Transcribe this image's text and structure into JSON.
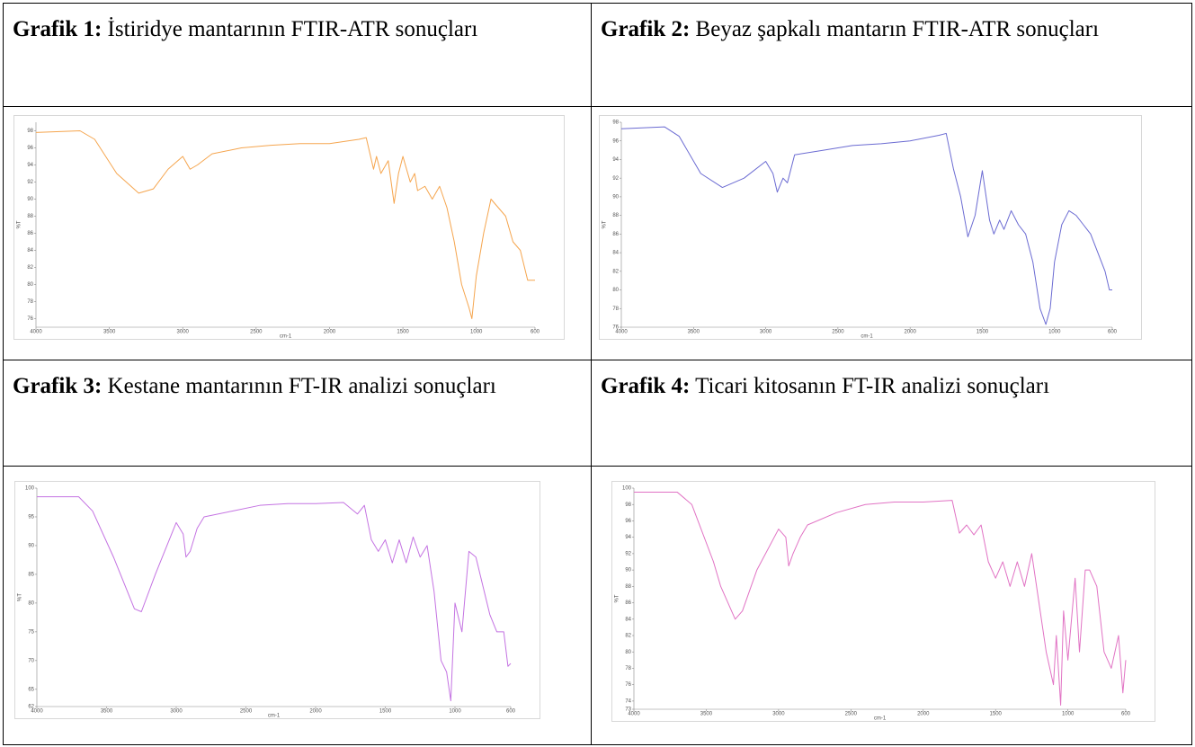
{
  "table": {
    "rows": [
      [
        {
          "label": "Grafik 1:",
          "text": "İstiridye mantarının FTIR-ATR sonuçları"
        },
        {
          "label": "Grafik 2:",
          "text": "Beyaz şapkalı mantarın FTIR-ATR sonuçları"
        }
      ],
      [
        {
          "label": "Grafik 3:",
          "text": "Kestane mantarının FT-IR analizi sonuçları"
        },
        {
          "label": "Grafik 4:",
          "text": "Ticari kitosanın FT-IR analizi sonuçları"
        }
      ]
    ]
  },
  "chart_data": [
    {
      "type": "line",
      "x_label": "cm-1",
      "y_label": "%T",
      "xlim": [
        4000,
        600
      ],
      "ylim": [
        75,
        99
      ],
      "xticks": [
        4000,
        3500,
        3000,
        2500,
        2000,
        1500,
        1000,
        600
      ],
      "yticks": [
        76,
        78,
        80,
        82,
        84,
        86,
        88,
        90,
        92,
        94,
        96,
        98
      ],
      "x": [
        4000,
        3700,
        3600,
        3450,
        3300,
        3200,
        3100,
        3000,
        2950,
        2900,
        2800,
        2600,
        2400,
        2200,
        2000,
        1800,
        1750,
        1700,
        1680,
        1650,
        1600,
        1560,
        1530,
        1500,
        1450,
        1420,
        1400,
        1350,
        1300,
        1250,
        1200,
        1150,
        1100,
        1050,
        1030,
        1000,
        950,
        900,
        850,
        800,
        750,
        700,
        650,
        600
      ],
      "series": [
        {
          "color": "#f5a54e",
          "values": [
            97.8,
            98,
            97,
            93,
            90.7,
            91.2,
            93.5,
            95,
            93.5,
            94,
            95.3,
            96,
            96.3,
            96.5,
            96.5,
            97,
            97.2,
            93.5,
            95,
            93,
            94.5,
            89.5,
            93,
            95,
            92,
            93,
            91,
            91.5,
            90,
            91.5,
            89,
            85,
            80,
            77.3,
            76,
            81,
            86,
            90,
            89,
            88,
            85,
            84,
            80.5,
            80.5
          ]
        }
      ]
    },
    {
      "type": "line",
      "x_label": "cm-1",
      "y_label": "%T",
      "xlim": [
        4000,
        600
      ],
      "ylim": [
        76,
        98
      ],
      "xticks": [
        4000,
        3500,
        3000,
        2500,
        2000,
        1500,
        1000,
        600
      ],
      "yticks": [
        76,
        78,
        80,
        82,
        84,
        86,
        88,
        90,
        92,
        94,
        96,
        98
      ],
      "x": [
        4000,
        3700,
        3600,
        3450,
        3300,
        3150,
        3000,
        2950,
        2920,
        2880,
        2850,
        2800,
        2600,
        2400,
        2200,
        2000,
        1800,
        1750,
        1700,
        1650,
        1600,
        1550,
        1500,
        1450,
        1420,
        1380,
        1350,
        1300,
        1250,
        1200,
        1150,
        1100,
        1060,
        1030,
        1000,
        950,
        900,
        850,
        800,
        750,
        700,
        650,
        620,
        600
      ],
      "series": [
        {
          "color": "#6b6bd2",
          "values": [
            97.3,
            97.5,
            96.5,
            92.5,
            91,
            92,
            93.8,
            92.5,
            90.5,
            92,
            91.5,
            94.5,
            95,
            95.5,
            95.7,
            96,
            96.6,
            96.8,
            93,
            90,
            85.7,
            88,
            92.8,
            87.5,
            86,
            87.5,
            86.5,
            88.5,
            87,
            86,
            83,
            78,
            76.3,
            78,
            83,
            87,
            88.5,
            88,
            87,
            86,
            84,
            82,
            80,
            80
          ]
        }
      ]
    },
    {
      "type": "line",
      "x_label": "cm-1",
      "y_label": "%T",
      "xlim": [
        4000,
        600
      ],
      "ylim": [
        62,
        100
      ],
      "xticks": [
        4000,
        3500,
        3000,
        2500,
        2000,
        1500,
        1000,
        600
      ],
      "yticks": [
        62,
        65,
        70,
        75,
        80,
        85,
        90,
        95,
        100
      ],
      "x": [
        4000,
        3700,
        3600,
        3450,
        3300,
        3250,
        3150,
        3000,
        2950,
        2930,
        2900,
        2850,
        2800,
        2600,
        2400,
        2200,
        2000,
        1800,
        1750,
        1700,
        1650,
        1600,
        1550,
        1500,
        1450,
        1400,
        1350,
        1300,
        1250,
        1200,
        1150,
        1100,
        1060,
        1030,
        1000,
        950,
        900,
        850,
        800,
        750,
        700,
        650,
        620,
        600
      ],
      "series": [
        {
          "color": "#c473e2",
          "values": [
            98.5,
            98.5,
            96,
            88,
            79,
            78.5,
            85,
            94,
            92,
            88,
            89,
            93,
            95,
            96,
            97,
            97.3,
            97.3,
            97.5,
            96.5,
            95.5,
            97,
            91,
            89,
            91,
            87,
            91,
            87,
            91.5,
            88,
            90,
            82,
            70,
            68,
            63,
            80,
            75,
            89,
            88,
            83,
            78,
            75,
            75,
            69,
            69.5
          ]
        }
      ]
    },
    {
      "type": "line",
      "x_label": "cm-1",
      "y_label": "%T",
      "xlim": [
        4000,
        600
      ],
      "ylim": [
        73,
        100
      ],
      "xticks": [
        4000,
        3500,
        3000,
        2500,
        2000,
        1500,
        1000,
        600
      ],
      "yticks": [
        73,
        74,
        76,
        78,
        80,
        82,
        84,
        86,
        88,
        90,
        92,
        94,
        96,
        98,
        100
      ],
      "x": [
        4000,
        3700,
        3600,
        3450,
        3400,
        3300,
        3250,
        3150,
        3000,
        2950,
        2930,
        2900,
        2850,
        2800,
        2600,
        2400,
        2200,
        2000,
        1800,
        1750,
        1700,
        1650,
        1600,
        1550,
        1500,
        1450,
        1400,
        1350,
        1300,
        1250,
        1200,
        1150,
        1100,
        1080,
        1050,
        1030,
        1000,
        950,
        920,
        880,
        850,
        800,
        750,
        700,
        650,
        620,
        600
      ],
      "series": [
        {
          "color": "#e173c4",
          "values": [
            99.5,
            99.5,
            98,
            91,
            88,
            84,
            85,
            90,
            95,
            94,
            90.5,
            92,
            94,
            95.5,
            97,
            98,
            98.3,
            98.3,
            98.5,
            94.5,
            95.5,
            94.3,
            95.5,
            91,
            89,
            91,
            88,
            91,
            88,
            92,
            86,
            80,
            76,
            82,
            73.5,
            85,
            79,
            89,
            80,
            90,
            90,
            88,
            80,
            78,
            82,
            75,
            79
          ]
        }
      ]
    }
  ]
}
